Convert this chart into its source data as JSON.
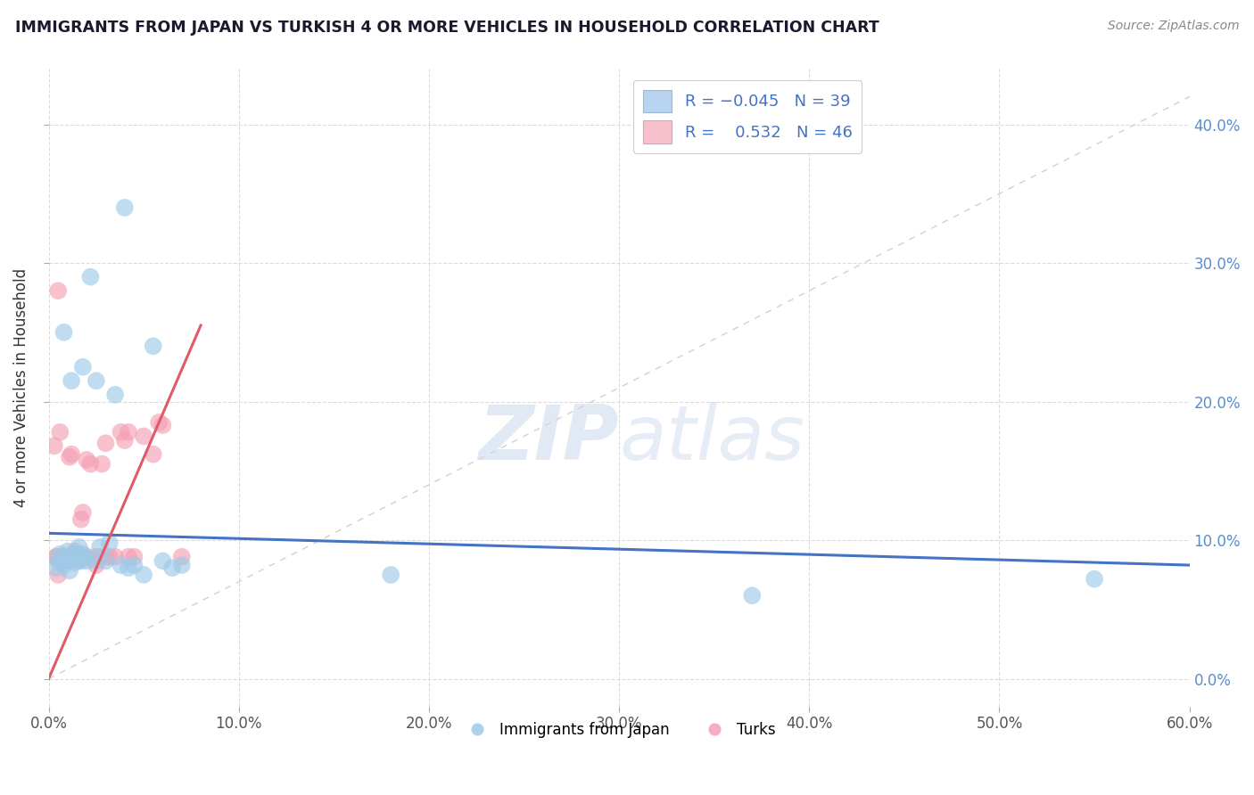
{
  "title": "IMMIGRANTS FROM JAPAN VS TURKISH 4 OR MORE VEHICLES IN HOUSEHOLD CORRELATION CHART",
  "source_text": "Source: ZipAtlas.com",
  "ylabel": "4 or more Vehicles in Household",
  "xlim": [
    0.0,
    0.6
  ],
  "ylim": [
    -0.02,
    0.44
  ],
  "xticks": [
    0.0,
    0.1,
    0.2,
    0.3,
    0.4,
    0.5,
    0.6
  ],
  "yticks": [
    0.0,
    0.1,
    0.2,
    0.3,
    0.4
  ],
  "legend_label1": "Immigrants from Japan",
  "legend_label2": "Turks",
  "blue_color": "#9ecae8",
  "pink_color": "#f4a0b5",
  "blue_line_color": "#4472c4",
  "pink_line_color": "#e05a6a",
  "ref_line_color": "#c8c8c8",
  "grid_color": "#d8d8d8",
  "tick_color": "#5b8dc8",
  "japan_x": [
    0.004,
    0.005,
    0.006,
    0.007,
    0.008,
    0.009,
    0.01,
    0.011,
    0.012,
    0.013,
    0.014,
    0.015,
    0.016,
    0.017,
    0.018,
    0.019,
    0.02,
    0.022,
    0.025,
    0.027,
    0.03,
    0.032,
    0.035,
    0.038,
    0.04,
    0.042,
    0.045,
    0.05,
    0.055,
    0.06,
    0.065,
    0.07,
    0.18,
    0.37,
    0.55,
    0.008,
    0.012,
    0.018,
    0.025
  ],
  "japan_y": [
    0.08,
    0.085,
    0.09,
    0.085,
    0.082,
    0.088,
    0.092,
    0.078,
    0.086,
    0.088,
    0.084,
    0.09,
    0.095,
    0.085,
    0.09,
    0.088,
    0.085,
    0.29,
    0.215,
    0.095,
    0.085,
    0.098,
    0.205,
    0.082,
    0.34,
    0.08,
    0.082,
    0.075,
    0.24,
    0.085,
    0.08,
    0.082,
    0.075,
    0.06,
    0.072,
    0.25,
    0.215,
    0.225,
    0.085
  ],
  "turks_x": [
    0.003,
    0.004,
    0.005,
    0.006,
    0.007,
    0.008,
    0.009,
    0.01,
    0.011,
    0.012,
    0.013,
    0.014,
    0.015,
    0.016,
    0.017,
    0.018,
    0.02,
    0.022,
    0.025,
    0.027,
    0.03,
    0.032,
    0.035,
    0.038,
    0.04,
    0.042,
    0.045,
    0.05,
    0.055,
    0.06,
    0.004,
    0.006,
    0.008,
    0.01,
    0.015,
    0.02,
    0.025,
    0.03,
    0.005,
    0.009,
    0.012,
    0.018,
    0.028,
    0.042,
    0.058,
    0.07
  ],
  "turks_y": [
    0.168,
    0.088,
    0.075,
    0.178,
    0.085,
    0.088,
    0.085,
    0.088,
    0.16,
    0.162,
    0.09,
    0.092,
    0.088,
    0.086,
    0.115,
    0.12,
    0.158,
    0.155,
    0.082,
    0.088,
    0.17,
    0.088,
    0.088,
    0.178,
    0.172,
    0.088,
    0.088,
    0.175,
    0.162,
    0.183,
    0.088,
    0.088,
    0.088,
    0.088,
    0.088,
    0.088,
    0.088,
    0.088,
    0.28,
    0.085,
    0.088,
    0.088,
    0.155,
    0.178,
    0.185,
    0.088
  ],
  "blue_line_x0": 0.0,
  "blue_line_y0": 0.105,
  "blue_line_x1": 0.6,
  "blue_line_y1": 0.082,
  "pink_line_x0": 0.0,
  "pink_line_y0": 0.0,
  "pink_line_x1": 0.08,
  "pink_line_y1": 0.255
}
